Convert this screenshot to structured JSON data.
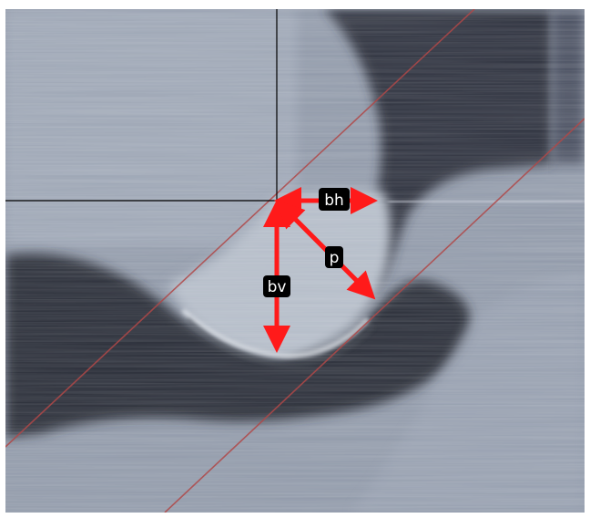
{
  "image": {
    "kind": "micrograph",
    "labels": {
      "bh": "bh",
      "bv": "bv",
      "p": "p"
    },
    "colors": {
      "arrow": "#ff1a1a",
      "label_bg": "#000000",
      "label_text": "#ffffff",
      "guide_line": "#b04848",
      "crosshair": "#000000",
      "surface_light": "#9aa4b4",
      "surface_dark": "#2a2d37"
    }
  }
}
